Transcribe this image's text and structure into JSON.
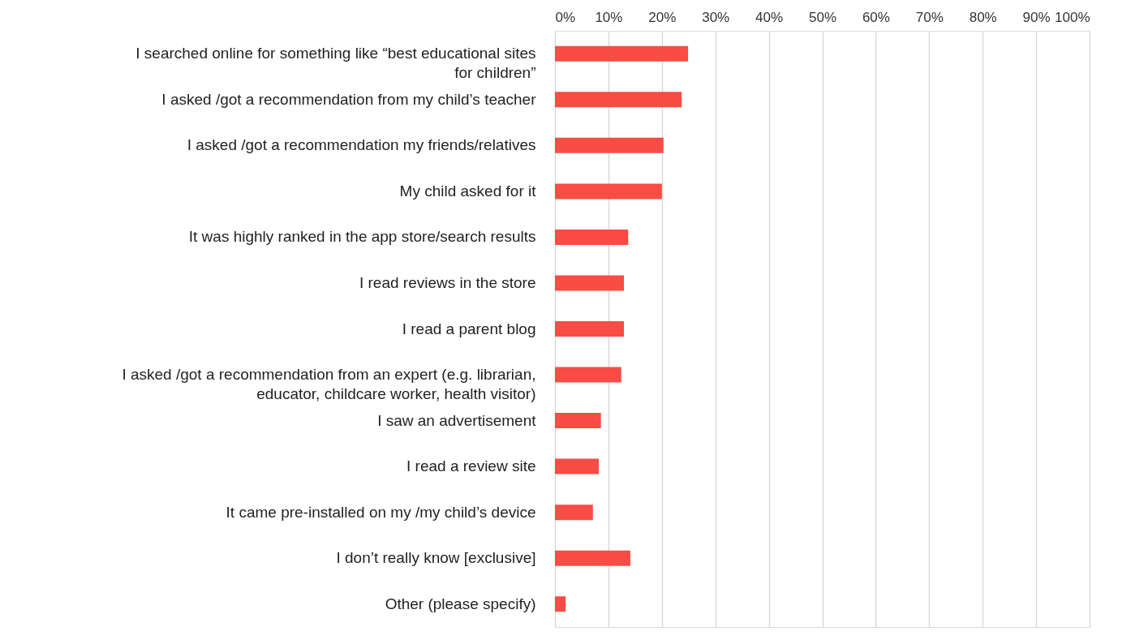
{
  "chart_data": {
    "type": "bar",
    "orientation": "horizontal",
    "categories": [
      "I searched online for something like “best educational sites for children”",
      "I asked /got a recommendation from my child’s teacher",
      "I asked /got a recommendation my friends/relatives",
      "My child asked for it",
      "It was highly ranked in the app store/search results",
      "I read reviews in the store",
      "I read a parent blog",
      "I asked /got a recommendation from an expert (e.g. librarian, educator, childcare worker, health visitor)",
      "I saw an advertisement",
      "I read a review site",
      "It came pre-installed on my /my child’s device",
      "I don’t really know [exclusive]",
      "Other (please specify)"
    ],
    "values": [
      24.9,
      23.7,
      20.3,
      20.0,
      13.7,
      12.9,
      12.9,
      12.4,
      8.6,
      8.2,
      7.1,
      14.1,
      2.0
    ],
    "color": "#f84c44",
    "xlim": [
      0,
      100
    ],
    "xticks": [
      {
        "value": 0,
        "label": "0%"
      },
      {
        "value": 10,
        "label": "10%"
      },
      {
        "value": 20,
        "label": "20%"
      },
      {
        "value": 30,
        "label": "30%"
      },
      {
        "value": 40,
        "label": "40%"
      },
      {
        "value": 50,
        "label": "50%"
      },
      {
        "value": 60,
        "label": "60%"
      },
      {
        "value": 70,
        "label": "70%"
      },
      {
        "value": 80,
        "label": "80%"
      },
      {
        "value": 90,
        "label": "90%"
      },
      {
        "value": 100,
        "label": "100%"
      }
    ],
    "grid": "x"
  }
}
